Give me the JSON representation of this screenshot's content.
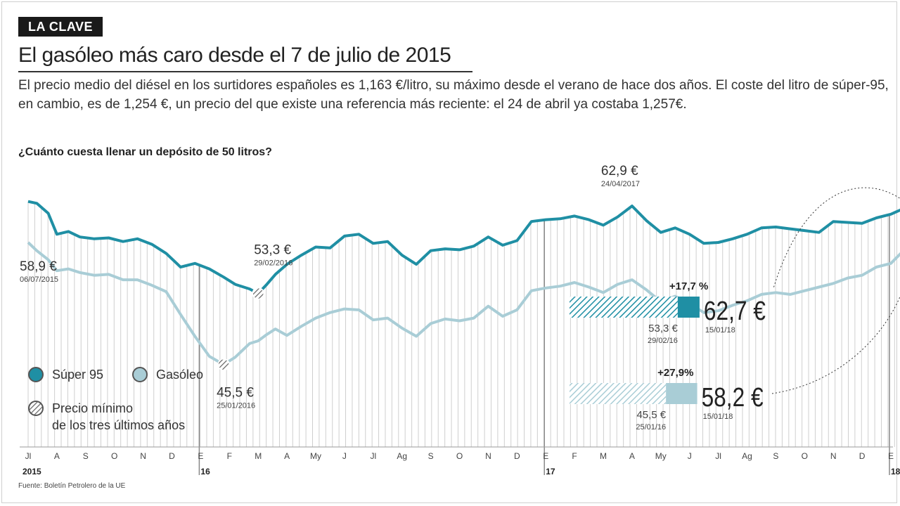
{
  "header": {
    "tag": "LA CLAVE",
    "title": "El gasóleo más caro desde el 7 de julio de 2015",
    "description": "El precio medio del diésel en los surtidores españoles es 1,163 €/litro, su máximo desde el verano de hace dos años. El coste del litro de súper-95, en cambio, es de 1,254 €, un precio del que existe una referencia más reciente: el 24 de abril ya costaba 1,257€.",
    "question": "¿Cuánto cuesta llenar un depósito de 50 litros?"
  },
  "legend": {
    "items": [
      {
        "label": "Súper 95",
        "color": "#1f8fa4"
      },
      {
        "label": "Gasóleo",
        "color": "#a9cdd6"
      }
    ],
    "minimum_line1": "Precio mínimo",
    "minimum_line2": "de los tres últimos años"
  },
  "source": "Fuente: Boletín Petrolero de la UE",
  "chart_data": {
    "type": "line",
    "title": "¿Cuánto cuesta llenar un depósito de 50 litros?",
    "x_months": [
      "Jl",
      "A",
      "S",
      "O",
      "N",
      "D",
      "E",
      "F",
      "M",
      "A",
      "My",
      "J",
      "Jl",
      "Ag",
      "S",
      "O",
      "N",
      "D",
      "E",
      "F",
      "M",
      "A",
      "My",
      "J",
      "Jl",
      "Ag",
      "S",
      "O",
      "N",
      "D",
      "E"
    ],
    "years": [
      {
        "label": "2015",
        "month_index": 0
      },
      {
        "label": "16",
        "month_index": 6
      },
      {
        "label": "17",
        "month_index": 18
      },
      {
        "label": "18",
        "month_index": 30
      }
    ],
    "ylim": [
      40,
      67
    ],
    "series": [
      {
        "name": "Súper 95",
        "color": "#1f8fa4",
        "x": [
          0,
          0.3,
          0.7,
          1.0,
          1.4,
          1.8,
          2.3,
          2.8,
          3.3,
          3.8,
          4.3,
          4.8,
          5.3,
          5.8,
          6.3,
          6.8,
          7.2,
          7.7,
          8.0,
          8.3,
          8.6,
          9.0,
          9.5,
          10.0,
          10.5,
          11.0,
          11.5,
          12.0,
          12.5,
          13.0,
          13.5,
          14.0,
          14.5,
          15.0,
          15.5,
          16.0,
          16.5,
          17.0,
          17.5,
          18.0,
          18.5,
          19.0,
          19.5,
          20.0,
          20.5,
          21.0,
          21.5,
          22.0,
          22.5,
          23.0,
          23.5,
          24.0,
          24.5,
          25.0,
          25.5,
          26.0,
          26.5,
          27.0,
          27.5,
          28.0,
          28.5,
          29.0,
          29.5,
          30.0,
          30.5
        ],
        "values": [
          63.4,
          63.2,
          62.1,
          59.8,
          60.1,
          59.5,
          59.3,
          59.4,
          59.0,
          59.3,
          58.7,
          57.7,
          56.2,
          56.6,
          56.0,
          55.1,
          54.3,
          53.8,
          53.3,
          54.3,
          55.4,
          56.5,
          57.5,
          58.4,
          58.3,
          59.6,
          59.8,
          58.8,
          59.0,
          57.5,
          56.5,
          58.0,
          58.2,
          58.1,
          58.5,
          59.5,
          58.6,
          59.1,
          61.2,
          61.4,
          61.5,
          61.8,
          61.4,
          60.8,
          61.7,
          62.9,
          61.3,
          60.0,
          60.5,
          59.8,
          58.8,
          58.9,
          59.3,
          59.8,
          60.5,
          60.6,
          60.4,
          60.2,
          60.0,
          61.2,
          61.1,
          61.0,
          61.6,
          62.0,
          62.7
        ]
      },
      {
        "name": "Gasóleo",
        "color": "#a9cdd6",
        "x": [
          0,
          0.3,
          0.7,
          1.0,
          1.4,
          1.8,
          2.3,
          2.8,
          3.3,
          3.8,
          4.3,
          4.8,
          5.3,
          5.8,
          6.3,
          6.8,
          7.2,
          7.7,
          8.0,
          8.3,
          8.6,
          9.0,
          9.5,
          10.0,
          10.5,
          11.0,
          11.5,
          12.0,
          12.5,
          13.0,
          13.5,
          14.0,
          14.5,
          15.0,
          15.5,
          16.0,
          16.5,
          17.0,
          17.5,
          18.0,
          18.5,
          19.0,
          19.5,
          20.0,
          20.5,
          21.0,
          21.5,
          22.0,
          22.5,
          23.0,
          23.5,
          24.0,
          24.5,
          25.0,
          25.5,
          26.0,
          26.5,
          27.0,
          27.5,
          28.0,
          28.5,
          29.0,
          29.5,
          30.0,
          30.5
        ],
        "values": [
          58.9,
          58.0,
          57.0,
          55.8,
          56.0,
          55.6,
          55.3,
          55.4,
          54.8,
          54.8,
          54.2,
          53.5,
          51.0,
          48.6,
          46.4,
          45.5,
          46.3,
          47.8,
          48.1,
          48.8,
          49.4,
          48.7,
          49.7,
          50.6,
          51.2,
          51.6,
          51.5,
          50.4,
          50.6,
          49.5,
          48.6,
          50.0,
          50.5,
          50.3,
          50.6,
          51.9,
          50.8,
          51.5,
          53.6,
          53.9,
          54.1,
          54.5,
          54.0,
          53.4,
          54.3,
          54.8,
          53.7,
          52.4,
          53.0,
          52.2,
          51.2,
          51.4,
          52.0,
          52.5,
          53.2,
          53.4,
          53.2,
          53.6,
          54.0,
          54.4,
          55.0,
          55.3,
          56.2,
          56.6,
          58.2
        ]
      }
    ],
    "annotations": [
      {
        "series": "Gasóleo",
        "x_index": 0,
        "value": "58,9 €",
        "date": "06/07/2015"
      },
      {
        "series": "Súper 95",
        "x_index": 18,
        "value": "53,3 €",
        "date": "29/02/2016",
        "minimum": true
      },
      {
        "series": "Gasóleo",
        "x_index": 15,
        "value": "45,5 €",
        "date": "25/01/2016",
        "minimum": true
      },
      {
        "series": "Súper 95",
        "x_index": 45,
        "value": "62,9 €",
        "date": "24/04/2017"
      }
    ],
    "comparison": [
      {
        "series": "Súper 95",
        "change": "+17,7 %",
        "min_value": "53,3 €",
        "min_date": "29/02/16",
        "current_value": "62,7 €",
        "current_date": "15/01/18",
        "min_num": 53.3,
        "current_num": 62.7
      },
      {
        "series": "Gasóleo",
        "change": "+27,9%",
        "min_value": "45,5 €",
        "min_date": "25/01/16",
        "current_value": "58,2 €",
        "current_date": "15/01/18",
        "min_num": 45.5,
        "current_num": 58.2
      }
    ]
  }
}
